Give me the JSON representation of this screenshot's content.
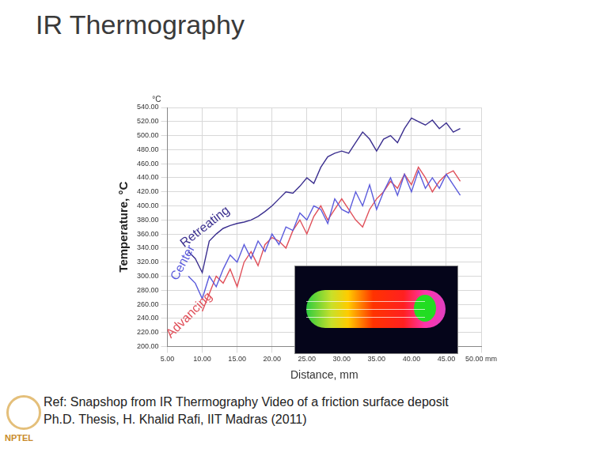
{
  "title": "IR Thermography",
  "footer": [
    "Ref: Snapshop from IR Thermography Video of a friction surface deposit",
    "Ph.D. Thesis, H. Khalid Rafi, IIT Madras (2011)"
  ],
  "logo": "NPTEL",
  "chart_data": {
    "type": "line",
    "x_label": "Distance, mm",
    "y_label": "Temperature, °C",
    "annotations": [
      "°C"
    ],
    "x": [
      8,
      9,
      10,
      11,
      12,
      13,
      14,
      15,
      16,
      17,
      18,
      19,
      20,
      21,
      22,
      23,
      24,
      25,
      26,
      27,
      28,
      29,
      30,
      31,
      32,
      33,
      34,
      35,
      36,
      37,
      38,
      39,
      40,
      41,
      42,
      43,
      44,
      45,
      46,
      47
    ],
    "series": [
      {
        "name": "Retreating",
        "color": "#3b2f8f",
        "values": [
          335,
          325,
          305,
          350,
          360,
          368,
          372,
          375,
          377,
          380,
          385,
          392,
          400,
          410,
          420,
          418,
          428,
          440,
          432,
          455,
          470,
          475,
          478,
          475,
          490,
          505,
          495,
          478,
          495,
          500,
          490,
          510,
          525,
          520,
          515,
          522,
          510,
          518,
          505,
          510
        ]
      },
      {
        "name": "Center",
        "color": "#5b5bdc",
        "values": [
          300,
          290,
          268,
          300,
          285,
          310,
          330,
          320,
          345,
          325,
          350,
          335,
          360,
          345,
          370,
          365,
          390,
          380,
          400,
          395,
          375,
          410,
          395,
          390,
          420,
          400,
          430,
          395,
          420,
          440,
          415,
          445,
          420,
          450,
          425,
          440,
          425,
          445,
          430,
          415
        ]
      },
      {
        "name": "Advancing",
        "color": "#e0505a",
        "values": [
          null,
          null,
          250,
          275,
          300,
          290,
          310,
          285,
          320,
          335,
          315,
          345,
          355,
          350,
          340,
          365,
          380,
          360,
          385,
          400,
          380,
          395,
          410,
          395,
          380,
          370,
          395,
          410,
          420,
          435,
          425,
          445,
          430,
          455,
          440,
          420,
          435,
          445,
          450,
          435
        ]
      }
    ],
    "xlim": [
      5,
      50
    ],
    "xticks": [
      {
        "value": 5,
        "label": "5.00"
      },
      {
        "value": 10,
        "label": "10.00"
      },
      {
        "value": 15,
        "label": "15.00"
      },
      {
        "value": 20,
        "label": "20.00"
      },
      {
        "value": 25,
        "label": "25.00"
      },
      {
        "value": 30,
        "label": "30.00"
      },
      {
        "value": 35,
        "label": "35.00"
      },
      {
        "value": 40,
        "label": "40.00"
      },
      {
        "value": 45,
        "label": "45.00"
      },
      {
        "value": 50,
        "label": "50.00 mm"
      }
    ],
    "ylim": [
      200,
      540
    ],
    "yticks": [
      {
        "value": 200,
        "label": "200.00"
      },
      {
        "value": 220,
        "label": "220.00"
      },
      {
        "value": 240,
        "label": "240.00"
      },
      {
        "value": 260,
        "label": "260.00"
      },
      {
        "value": 280,
        "label": "280.00"
      },
      {
        "value": 300,
        "label": "300.00"
      },
      {
        "value": 320,
        "label": "320.00"
      },
      {
        "value": 340,
        "label": "340.00"
      },
      {
        "value": 360,
        "label": "360.00"
      },
      {
        "value": 380,
        "label": "380.00"
      },
      {
        "value": 400,
        "label": "400.00"
      },
      {
        "value": 420,
        "label": "420.00"
      },
      {
        "value": 440,
        "label": "440.00"
      },
      {
        "value": 460,
        "label": "460.00"
      },
      {
        "value": 480,
        "label": "480.00"
      },
      {
        "value": 500,
        "label": "500.00"
      },
      {
        "value": 520,
        "label": "520.00"
      },
      {
        "value": 540,
        "label": "540.00"
      }
    ],
    "grid": true
  }
}
